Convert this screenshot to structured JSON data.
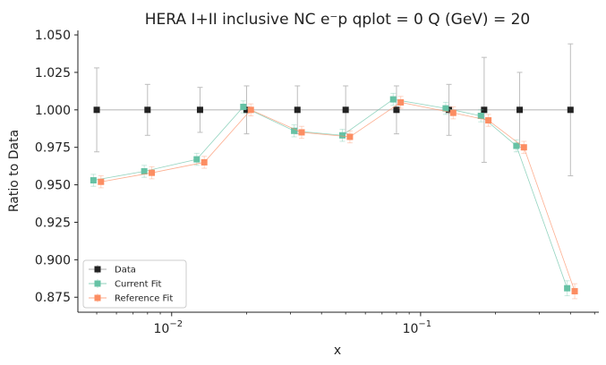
{
  "chart_data": {
    "type": "scatter",
    "title": "HERA I+II inclusive NC e⁻p qplot = 0 Q (GeV) = 20",
    "xlabel": "x",
    "ylabel": "Ratio to Data",
    "x_scale": "log",
    "xlim": [
      0.0042,
      0.52
    ],
    "ylim": [
      0.865,
      1.053
    ],
    "grid": false,
    "legend_position": "lower-left",
    "y_ticks": [
      "0.875",
      "0.900",
      "0.925",
      "0.950",
      "0.975",
      "1.000",
      "1.025",
      "1.050"
    ],
    "y_tick_values": [
      0.875,
      0.9,
      0.925,
      0.95,
      0.975,
      1.0,
      1.025,
      1.05
    ],
    "x_ticks": [
      {
        "value": 0.01,
        "base": "10",
        "exp": "−2"
      },
      {
        "value": 0.1,
        "base": "10",
        "exp": "−1"
      }
    ],
    "x_minor_ticks": [
      0.005,
      0.006,
      0.007,
      0.008,
      0.009,
      0.02,
      0.03,
      0.04,
      0.05,
      0.06,
      0.07,
      0.08,
      0.09,
      0.2,
      0.3,
      0.4,
      0.5
    ],
    "series": [
      {
        "name": "Data",
        "color": "#222222",
        "line_color": "#c8c8c8",
        "x_shift": 1.0,
        "x": [
          0.005,
          0.008,
          0.013,
          0.02,
          0.032,
          0.05,
          0.08,
          0.13,
          0.18,
          0.25,
          0.4
        ],
        "y": [
          1.0,
          1.0,
          1.0,
          1.0,
          1.0,
          1.0,
          1.0,
          1.0,
          1.0,
          1.0,
          1.0
        ],
        "err": [
          0.028,
          0.017,
          0.015,
          0.016,
          0.016,
          0.016,
          0.016,
          0.017,
          0.035,
          0.025,
          0.044
        ]
      },
      {
        "name": "Current Fit",
        "color": "#66c2a5",
        "line_color": "#66c2a5",
        "x_shift": 0.97,
        "x": [
          0.005,
          0.008,
          0.013,
          0.02,
          0.032,
          0.05,
          0.08,
          0.13,
          0.18,
          0.25,
          0.4
        ],
        "y": [
          0.953,
          0.959,
          0.967,
          1.002,
          0.986,
          0.983,
          1.007,
          1.001,
          0.996,
          0.976,
          0.881
        ],
        "err": [
          0.004,
          0.004,
          0.004,
          0.004,
          0.004,
          0.004,
          0.004,
          0.004,
          0.004,
          0.004,
          0.005
        ]
      },
      {
        "name": "Reference Fit",
        "color": "#fc8d62",
        "line_color": "#fc8d62",
        "x_shift": 1.04,
        "x": [
          0.005,
          0.008,
          0.013,
          0.02,
          0.032,
          0.05,
          0.08,
          0.13,
          0.18,
          0.25,
          0.4
        ],
        "y": [
          0.952,
          0.958,
          0.965,
          1.0,
          0.985,
          0.982,
          1.005,
          0.998,
          0.993,
          0.975,
          0.879
        ],
        "err": [
          0.004,
          0.004,
          0.004,
          0.004,
          0.004,
          0.004,
          0.004,
          0.004,
          0.004,
          0.004,
          0.005
        ]
      }
    ]
  }
}
